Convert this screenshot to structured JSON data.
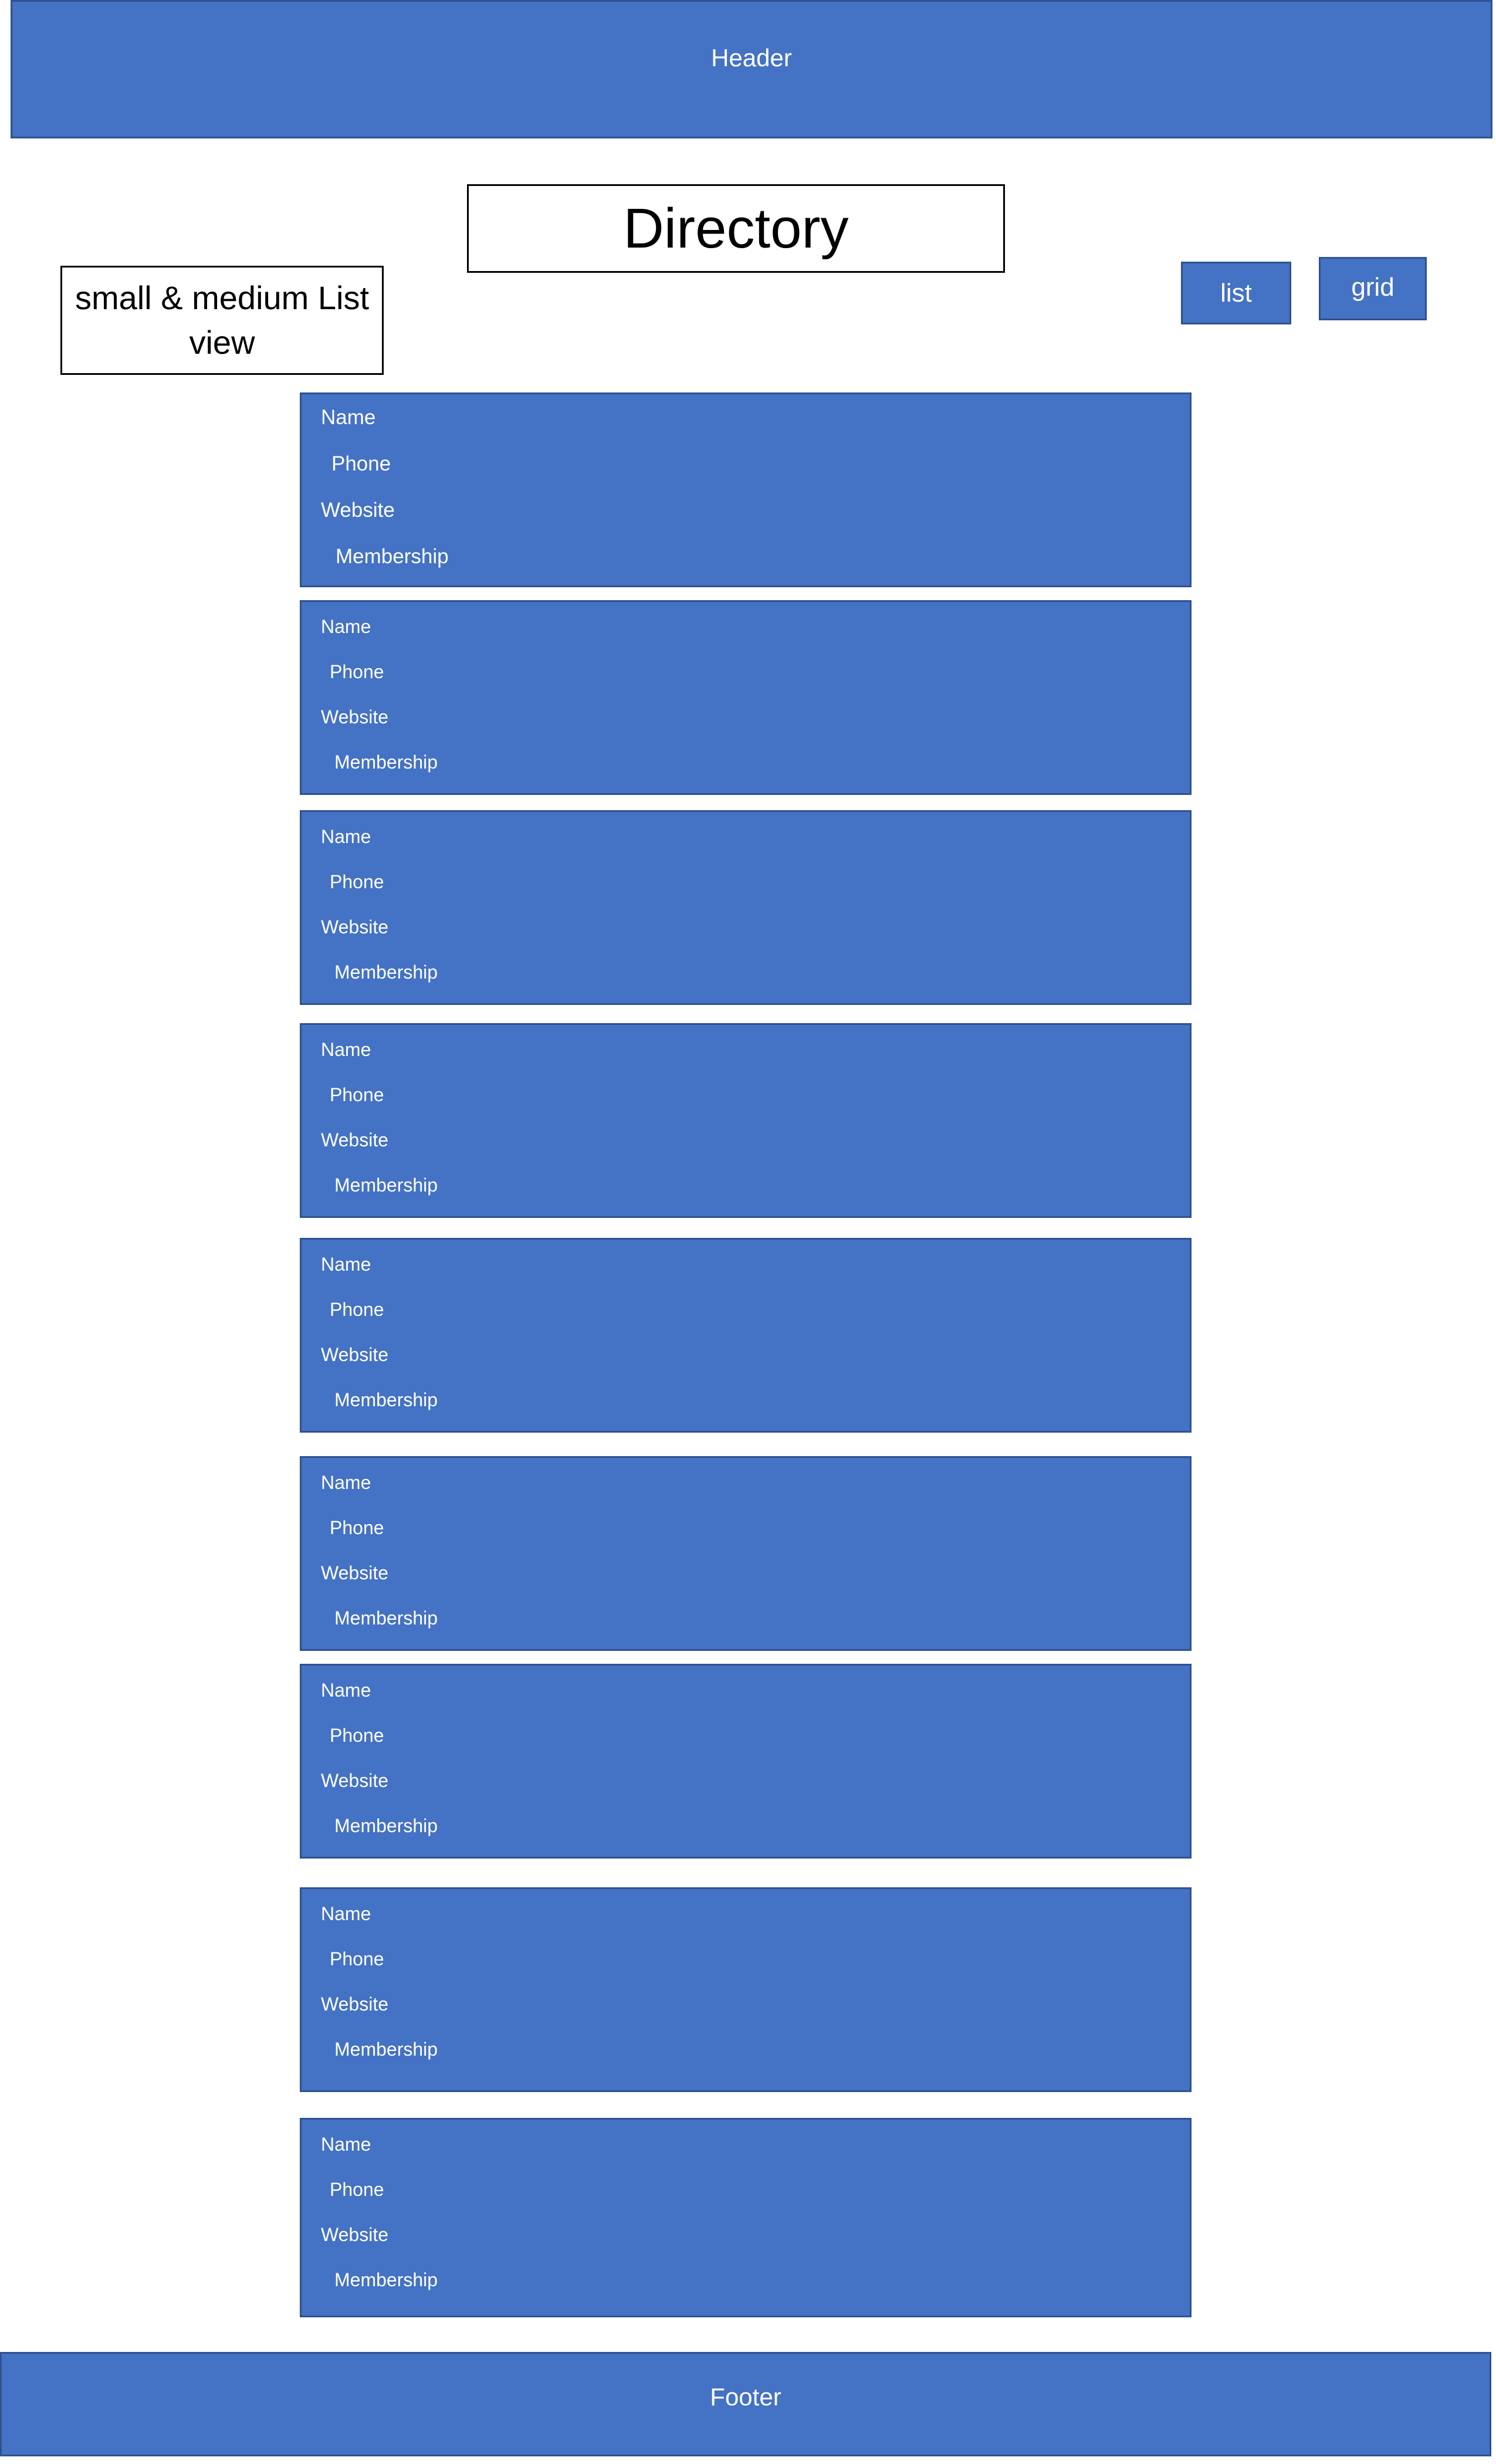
{
  "header": {
    "label": "Header"
  },
  "page_title": "Directory",
  "note": "small & medium List view",
  "view_toggle": {
    "list_label": "list",
    "grid_label": "grid"
  },
  "cards": [
    {
      "name": "Name",
      "phone": "Phone",
      "website": "Website",
      "membership": "Membership"
    },
    {
      "name": "Name",
      "phone": "Phone",
      "website": "Website",
      "membership": "Membership"
    },
    {
      "name": "Name",
      "phone": "Phone",
      "website": "Website",
      "membership": "Membership"
    },
    {
      "name": "Name",
      "phone": "Phone",
      "website": "Website",
      "membership": "Membership"
    },
    {
      "name": "Name",
      "phone": "Phone",
      "website": "Website",
      "membership": "Membership"
    },
    {
      "name": "Name",
      "phone": "Phone",
      "website": "Website",
      "membership": "Membership"
    },
    {
      "name": "Name",
      "phone": "Phone",
      "website": "Website",
      "membership": "Membership"
    },
    {
      "name": "Name",
      "phone": "Phone",
      "website": "Website",
      "membership": "Membership"
    },
    {
      "name": "Name",
      "phone": "Phone",
      "website": "Website",
      "membership": "Membership"
    }
  ],
  "footer": {
    "label": "Footer"
  },
  "colors": {
    "box_fill": "#4472c4",
    "box_border": "#2f528f",
    "text_on_box": "#ffffff"
  }
}
